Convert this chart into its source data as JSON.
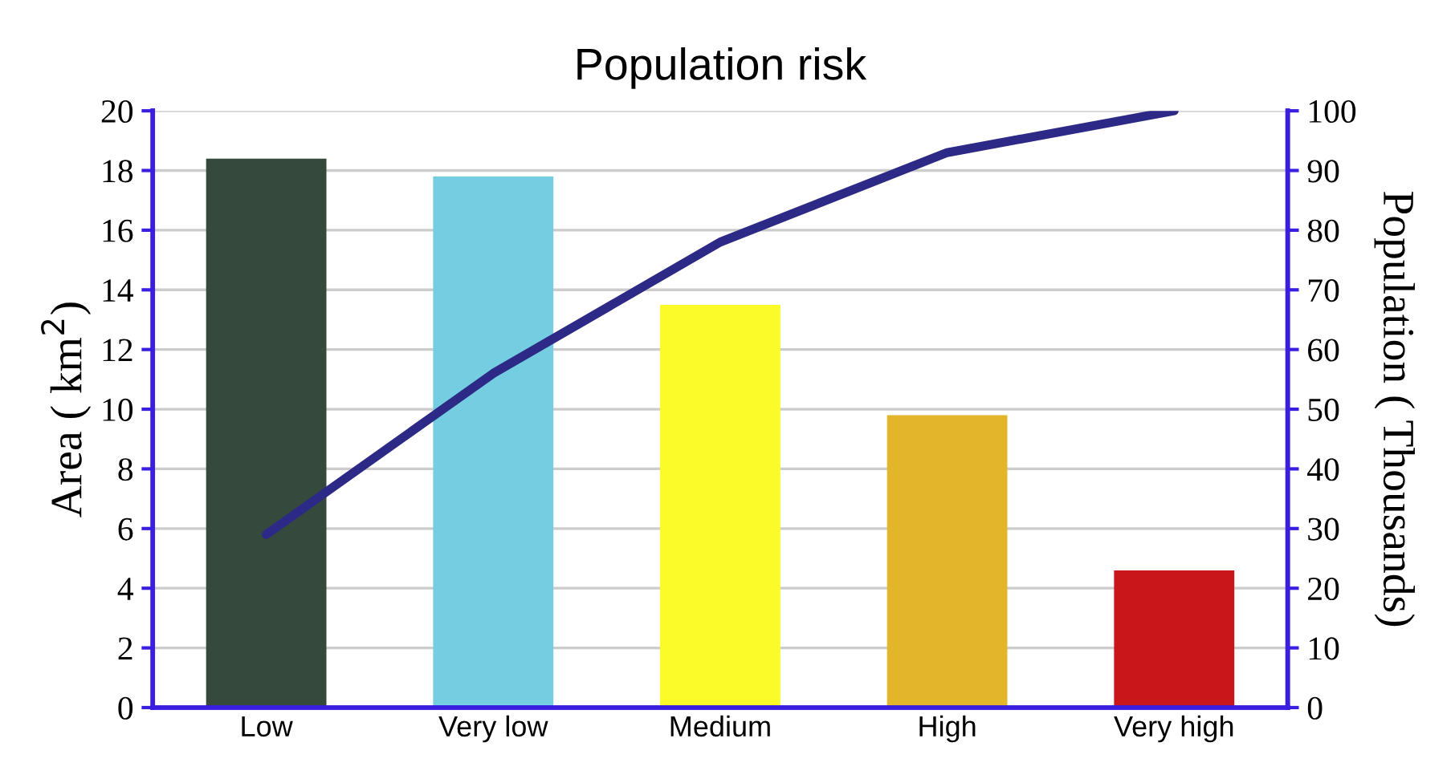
{
  "chart_data": {
    "type": "bar",
    "title": "Population risk",
    "categories": [
      "Low",
      "Very low",
      "Medium",
      "High",
      "Very high"
    ],
    "ylabel": "Area ( km$^{2}$)",
    "y2label": "Population ( Thousands)",
    "series": [
      {
        "colors": [
          "#354a3d",
          "#74cde0",
          "#fbfb2a",
          "#e2b52a",
          "#c8161a"
        ],
        "values": [
          18.4,
          17.8,
          13.5,
          9.8,
          4.6
        ]
      },
      {
        "type": "line",
        "axis": "y2",
        "color": "#2d2a87",
        "values": [
          29,
          56,
          78,
          93,
          100
        ]
      }
    ],
    "ylim": [
      0,
      20
    ],
    "yticks": [
      0,
      2,
      4,
      6,
      8,
      10,
      12,
      14,
      16,
      18,
      20
    ],
    "y2lim": [
      0,
      100
    ],
    "y2ticks": [
      0,
      10,
      20,
      30,
      40,
      50,
      60,
      70,
      80,
      90,
      100
    ],
    "grid": "y",
    "marker": "none",
    "line_style": "solid"
  }
}
